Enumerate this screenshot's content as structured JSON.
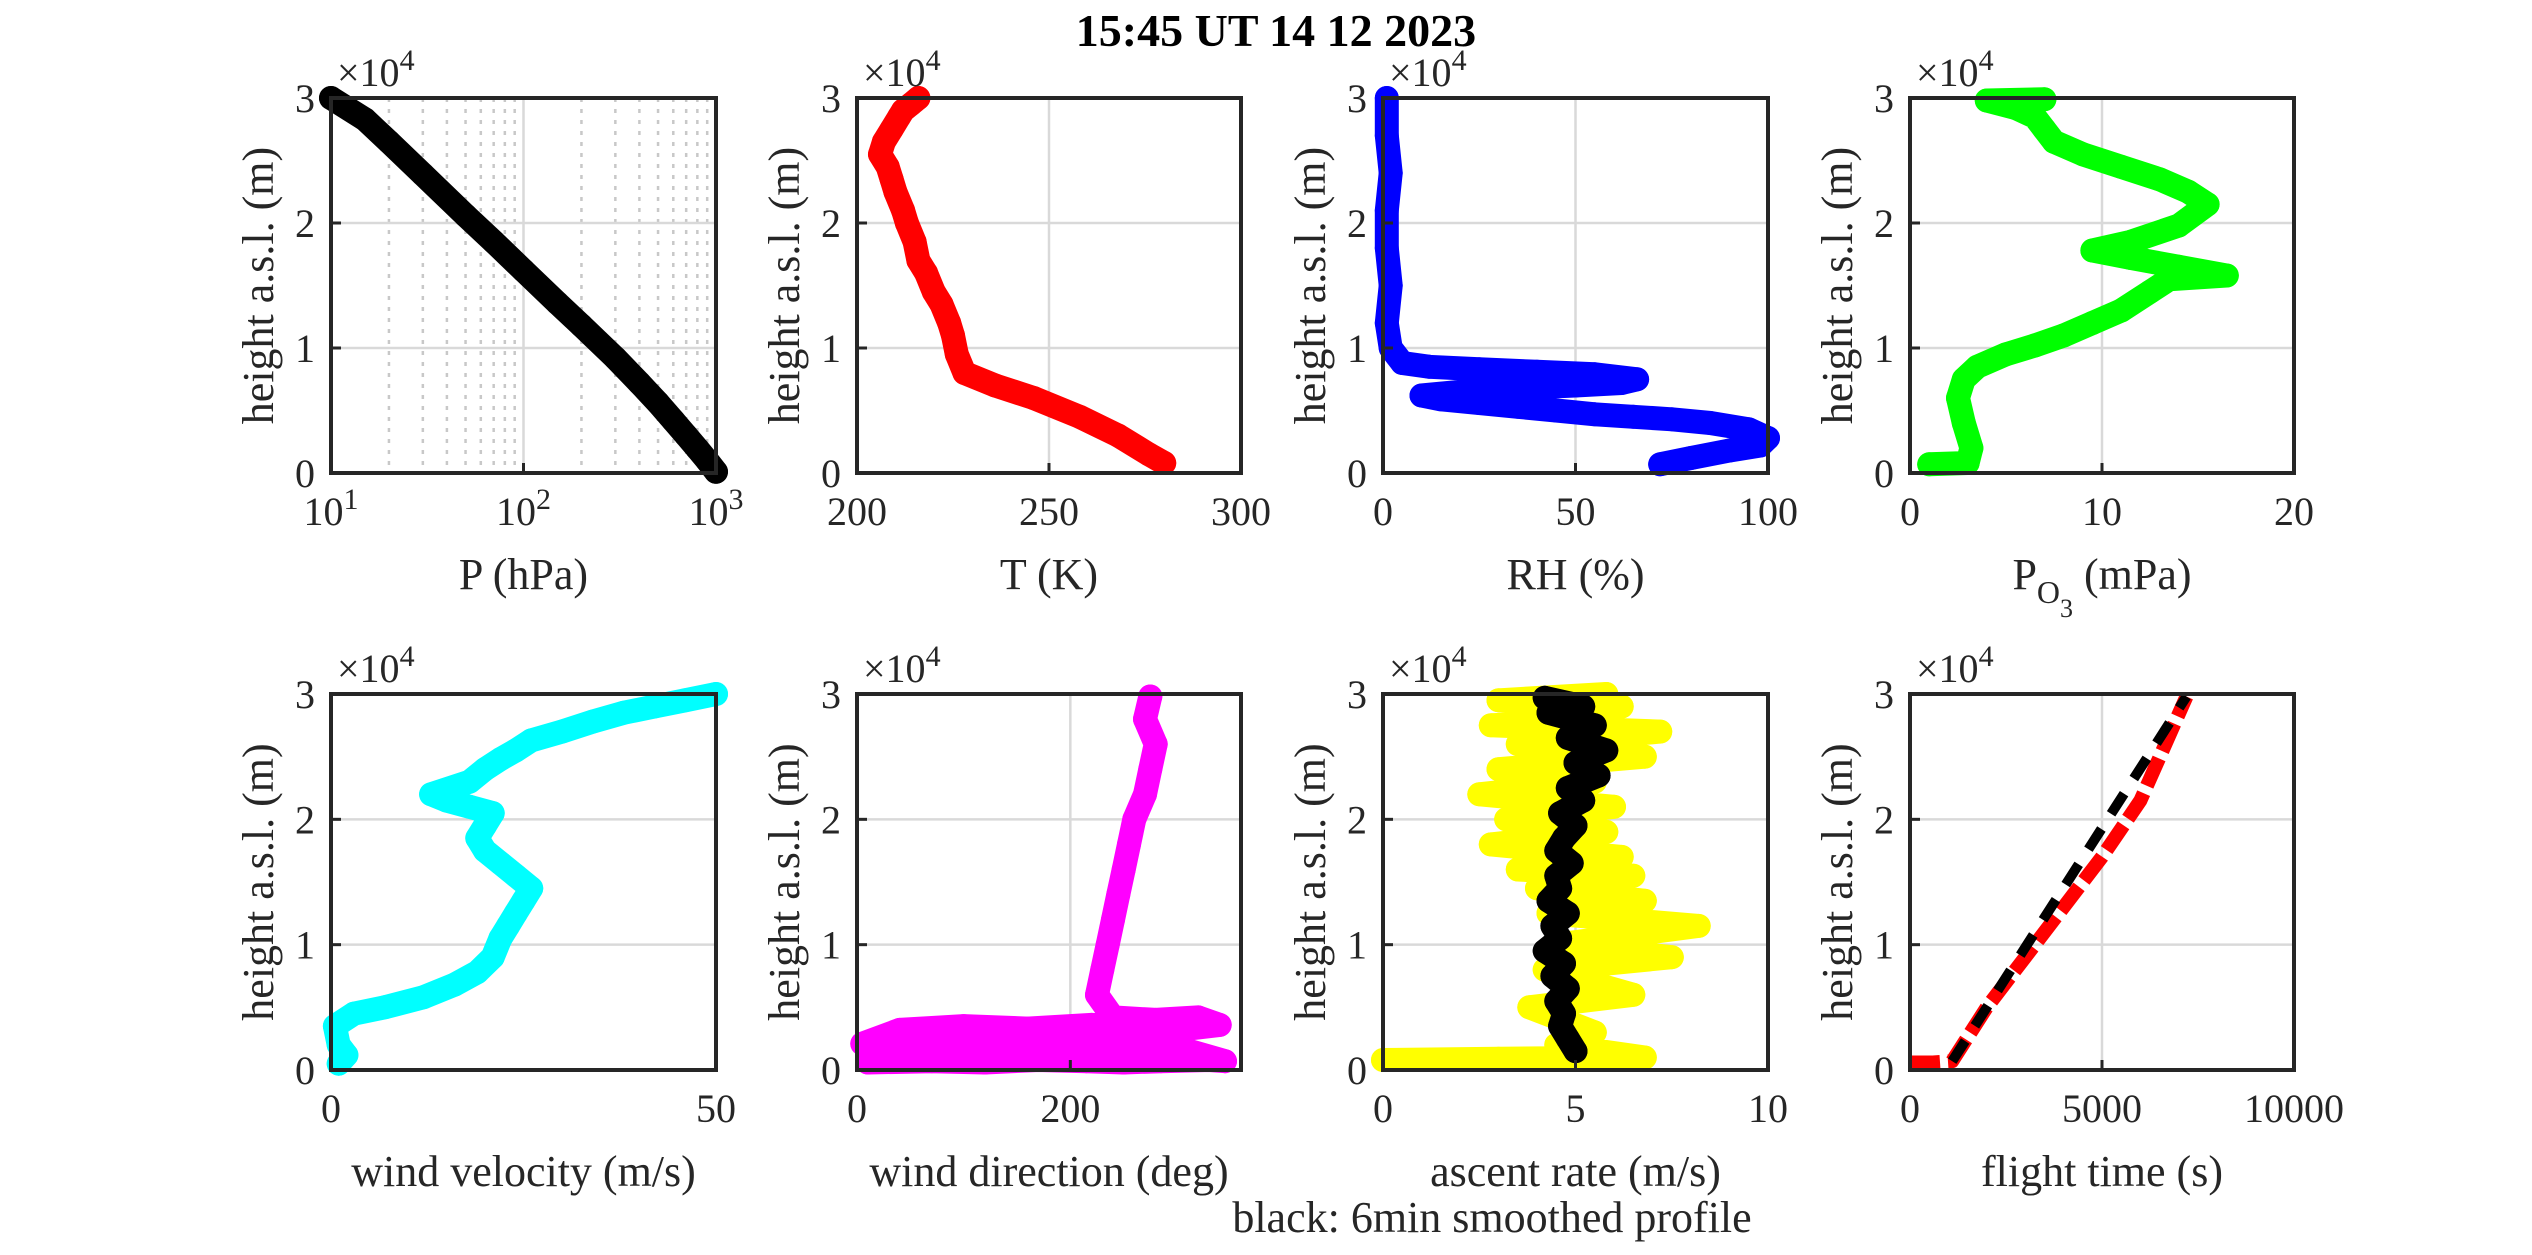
{
  "title": "15:45 UT  14 12 2023",
  "note": "black: 6min smoothed profile",
  "chart_data": [
    {
      "type": "scatter",
      "id": "pressure",
      "xlabel": "P (hPa)",
      "ylabel": "height a.s.l. (m)",
      "yexp": "×10",
      "xscale": "log",
      "xlim": [
        10,
        1000
      ],
      "ylim": [
        0,
        30000
      ],
      "xticks": [
        {
          "v": 10,
          "b": "10",
          "e": "1"
        },
        {
          "v": 100,
          "b": "10",
          "e": "2"
        },
        {
          "v": 1000,
          "b": "10",
          "e": "3"
        }
      ],
      "yticks": [
        "0",
        "1",
        "2",
        "3"
      ],
      "series": [
        {
          "color": "#000000",
          "x": [
            1000,
            900,
            800,
            700,
            600,
            500,
            400,
            300,
            200,
            150,
            100,
            70,
            50,
            30,
            20,
            15,
            10
          ],
          "y": [
            100,
            1000,
            1950,
            3000,
            4200,
            5600,
            7200,
            9200,
            11800,
            13600,
            16200,
            18500,
            20600,
            23900,
            26500,
            28300,
            30000
          ]
        }
      ]
    },
    {
      "type": "scatter",
      "id": "temperature",
      "xlabel": "T (K)",
      "ylabel": "height a.s.l. (m)",
      "yexp": "×10",
      "xscale": "linear",
      "xlim": [
        200,
        300
      ],
      "ylim": [
        0,
        30000
      ],
      "xticks": [
        "200",
        "250",
        "300"
      ],
      "xtickv": [
        200,
        250,
        300
      ],
      "yticks": [
        "0",
        "1",
        "2",
        "3"
      ],
      "series": [
        {
          "color": "#ff0000",
          "x": [
            280,
            276,
            268,
            258,
            246,
            236,
            228,
            226,
            225,
            224,
            222,
            220,
            218,
            216,
            215,
            213,
            212,
            210,
            209,
            208,
            206,
            207,
            209,
            211,
            212,
            214,
            216
          ],
          "y": [
            800,
            1500,
            3000,
            4500,
            6000,
            7000,
            8000,
            9500,
            11000,
            12000,
            13500,
            14500,
            16000,
            17000,
            18500,
            20000,
            21000,
            22500,
            23500,
            24500,
            25500,
            26500,
            27500,
            28500,
            29000,
            29500,
            30000
          ]
        }
      ]
    },
    {
      "type": "scatter",
      "id": "humidity",
      "xlabel": "RH (%)",
      "ylabel": "height a.s.l. (m)",
      "yexp": "×10",
      "xscale": "linear",
      "xlim": [
        0,
        100
      ],
      "ylim": [
        0,
        30000
      ],
      "xticks": [
        "0",
        "50",
        "100"
      ],
      "xtickv": [
        0,
        50,
        100
      ],
      "yticks": [
        "0",
        "1",
        "2",
        "3"
      ],
      "series": [
        {
          "color": "#0000ff",
          "x": [
            72,
            80,
            90,
            98,
            100,
            95,
            85,
            75,
            65,
            55,
            45,
            35,
            25,
            15,
            10,
            20,
            35,
            50,
            62,
            66,
            55,
            40,
            25,
            12,
            5,
            2,
            1,
            2,
            1,
            1,
            2,
            1,
            1
          ],
          "y": [
            700,
            1200,
            1800,
            2200,
            2800,
            3500,
            4000,
            4300,
            4500,
            4700,
            5000,
            5300,
            5600,
            5900,
            6200,
            6500,
            6800,
            7000,
            7200,
            7500,
            7900,
            8100,
            8300,
            8500,
            8800,
            10000,
            12000,
            15000,
            18000,
            21000,
            24000,
            27000,
            30000
          ]
        }
      ]
    },
    {
      "type": "scatter",
      "id": "ozone",
      "xlabel": "P",
      "xlabel_sub": "O",
      "xlabel_subsub": "3",
      "xlabel_tail": " (mPa)",
      "ylabel": "height a.s.l. (m)",
      "yexp": "×10",
      "xscale": "linear",
      "xlim": [
        0,
        20
      ],
      "ylim": [
        0,
        30000
      ],
      "xticks": [
        "0",
        "10",
        "20"
      ],
      "xtickv": [
        0,
        10,
        20
      ],
      "yticks": [
        "0",
        "1",
        "2",
        "3"
      ],
      "series": [
        {
          "color": "#00ff00",
          "x": [
            1.0,
            3.0,
            3.2,
            2.8,
            2.5,
            2.8,
            3.5,
            5.0,
            6.5,
            8.0,
            9.5,
            11.0,
            12.5,
            13.5,
            16.5,
            14.0,
            11.5,
            9.5,
            11.5,
            14.0,
            15.5,
            14.5,
            13.0,
            11.0,
            9.0,
            7.5,
            7.0,
            6.5,
            5.5,
            4.0,
            7.0
          ],
          "y": [
            700,
            800,
            2000,
            4000,
            6000,
            7500,
            8500,
            9500,
            10200,
            11000,
            12000,
            13000,
            14500,
            15500,
            15800,
            16500,
            17200,
            17800,
            18500,
            19800,
            21500,
            22500,
            23500,
            24500,
            25500,
            26500,
            27500,
            28500,
            29200,
            29800,
            29900
          ]
        }
      ]
    },
    {
      "type": "scatter",
      "id": "wind-velocity",
      "xlabel": "wind velocity (m/s)",
      "ylabel": "height a.s.l. (m)",
      "yexp": "×10",
      "xscale": "linear",
      "xlim": [
        0,
        50
      ],
      "ylim": [
        0,
        30000
      ],
      "xticks": [
        "0",
        "50"
      ],
      "xtickv": [
        0,
        50
      ],
      "yticks": [
        "0",
        "1",
        "2",
        "3"
      ],
      "series": [
        {
          "color": "#00ffff",
          "x": [
            1,
            2,
            1,
            0.5,
            3,
            7,
            12,
            16,
            19,
            21,
            22,
            23,
            24,
            25,
            26,
            24,
            22,
            20,
            19,
            20,
            21,
            18,
            15,
            13,
            18,
            20,
            22,
            24,
            26,
            30,
            34,
            38,
            42,
            46,
            50
          ],
          "y": [
            500,
            1200,
            2000,
            3500,
            4500,
            5000,
            5800,
            6800,
            7800,
            9000,
            10500,
            11500,
            12500,
            13500,
            14500,
            15500,
            16500,
            17500,
            18500,
            19500,
            20500,
            21000,
            21500,
            22000,
            23000,
            24000,
            24800,
            25500,
            26300,
            27000,
            27800,
            28500,
            29000,
            29500,
            30000
          ]
        }
      ]
    },
    {
      "type": "scatter",
      "id": "wind-direction",
      "xlabel": "wind direction (deg)",
      "ylabel": "height a.s.l. (m)",
      "yexp": "×10",
      "xscale": "linear",
      "xlim": [
        0,
        360
      ],
      "ylim": [
        0,
        30000
      ],
      "xticks": [
        "0",
        "200"
      ],
      "xtickv": [
        0,
        200
      ],
      "yticks": [
        "0",
        "1",
        "2",
        "3"
      ],
      "series": [
        {
          "color": "#ff00ff",
          "x": [
            10,
            70,
            120,
            170,
            215,
            250,
            285,
            330,
            345,
            300,
            250,
            200,
            150,
            100,
            50,
            5,
            40,
            100,
            160,
            220,
            260,
            300,
            340,
            320,
            280,
            240,
            225,
            230,
            235,
            240,
            245,
            250,
            255,
            260,
            270,
            275,
            280,
            270,
            275
          ],
          "y": [
            600,
            700,
            600,
            800,
            700,
            600,
            700,
            800,
            700,
            1800,
            2000,
            1800,
            2200,
            2000,
            1900,
            2100,
            3200,
            3500,
            3300,
            3600,
            3400,
            3200,
            3600,
            4200,
            4000,
            4200,
            6000,
            8000,
            10000,
            12000,
            14000,
            16000,
            18000,
            20000,
            22000,
            24000,
            26000,
            28000,
            29800
          ]
        }
      ]
    },
    {
      "type": "scatter",
      "id": "ascent-rate",
      "xlabel": "ascent rate (m/s)",
      "ylabel": "height a.s.l. (m)",
      "yexp": "×10",
      "xscale": "linear",
      "xlim": [
        0,
        10
      ],
      "ylim": [
        0,
        30000
      ],
      "xticks": [
        "0",
        "5",
        "10"
      ],
      "xtickv": [
        0,
        5,
        10
      ],
      "yticks": [
        "0",
        "1",
        "2",
        "3"
      ],
      "series": [
        {
          "color": "#ffff00",
          "x": [
            0,
            3,
            6.8,
            4.5,
            5.5,
            3.8,
            6.5,
            4.2,
            7.5,
            4.5,
            8.2,
            4.3,
            6.8,
            4.0,
            6.5,
            3.5,
            6.2,
            2.8,
            5.8,
            3.2,
            6.0,
            2.5,
            5.5,
            3.0,
            6.8,
            3.5,
            7.2,
            2.8,
            5.5,
            3.5,
            6.2,
            3.0,
            5.8
          ],
          "y": [
            800,
            900,
            1000,
            2000,
            3000,
            5000,
            6000,
            8000,
            9000,
            10000,
            11500,
            12500,
            13500,
            14500,
            15500,
            16000,
            17000,
            18000,
            19000,
            20000,
            21000,
            22000,
            23000,
            24000,
            25000,
            26000,
            27000,
            27500,
            28000,
            28500,
            29000,
            29500,
            30000
          ]
        },
        {
          "color": "#000000",
          "x": [
            5.0,
            4.8,
            4.6,
            4.7,
            4.5,
            4.8,
            4.4,
            4.7,
            4.2,
            4.6,
            4.4,
            4.8,
            4.3,
            4.6,
            4.5,
            4.9,
            4.5,
            4.7,
            5.0,
            4.6,
            5.2,
            4.8,
            5.6,
            5.0,
            5.8,
            4.8,
            5.5,
            4.3,
            5.2,
            4.2
          ],
          "y": [
            1500,
            2500,
            3500,
            4500,
            5500,
            6500,
            7500,
            8500,
            9500,
            10500,
            11500,
            12500,
            13500,
            14500,
            15500,
            16500,
            17500,
            18500,
            19500,
            20500,
            21500,
            22500,
            23500,
            24500,
            25500,
            26500,
            27500,
            28500,
            29000,
            29700
          ]
        }
      ]
    },
    {
      "type": "scatter",
      "id": "flight-time",
      "xlabel": "flight time (s)",
      "ylabel": "height a.s.l. (m)",
      "yexp": "×10",
      "xscale": "linear",
      "xlim": [
        0,
        10000
      ],
      "ylim": [
        0,
        30000
      ],
      "xticks": [
        "0",
        "5000",
        "10000"
      ],
      "xtickv": [
        0,
        5000,
        10000
      ],
      "yticks": [
        "0",
        "1",
        "2",
        "3"
      ],
      "series": [
        {
          "color": "#ff0000",
          "style": "dashed-thick",
          "x": [
            0,
            600,
            1100,
            2000,
            3000,
            4000,
            5000,
            6000,
            7200
          ],
          "y": [
            600,
            600,
            700,
            5000,
            9000,
            13000,
            17000,
            21500,
            29800
          ]
        },
        {
          "color": "#000000",
          "style": "dashed",
          "x": [
            1100,
            7200
          ],
          "y": [
            700,
            29800
          ]
        }
      ]
    }
  ]
}
